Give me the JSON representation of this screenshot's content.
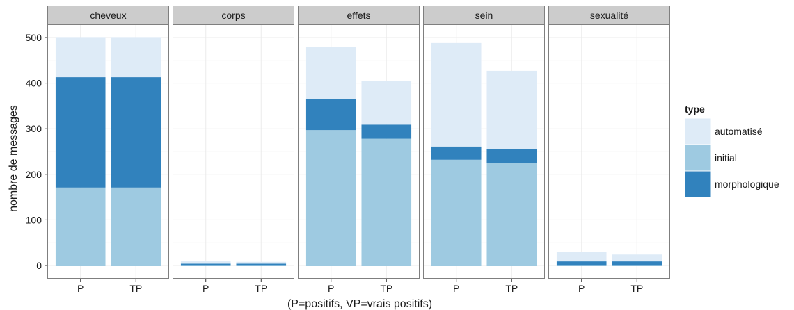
{
  "chart_data": {
    "type": "bar",
    "stacked": true,
    "facets": [
      "cheveux",
      "corps",
      "effets",
      "sein",
      "sexualité"
    ],
    "categories": [
      "P",
      "TP"
    ],
    "xlabel": "(P=positifs, VP=vrais positifs)",
    "ylabel": "nombre de messages",
    "ylim": [
      0,
      520
    ],
    "yticks": [
      0,
      100,
      200,
      300,
      400,
      500
    ],
    "grid": true,
    "legend": {
      "title": "type",
      "placement": "right",
      "entries": [
        "automatisé",
        "initial",
        "morphologique"
      ]
    },
    "colors": {
      "automatisé": "#deebf7",
      "initial": "#9ecae1",
      "morphologique": "#3182bd"
    },
    "stack_order": [
      "initial",
      "morphologique",
      "automatisé"
    ],
    "panels": [
      {
        "facet": "cheveux",
        "series": [
          {
            "name": "initial",
            "values": [
              171,
              171
            ]
          },
          {
            "name": "morphologique",
            "values": [
              242,
              242
            ]
          },
          {
            "name": "automatisé",
            "values": [
              88,
              88
            ]
          }
        ]
      },
      {
        "facet": "corps",
        "series": [
          {
            "name": "initial",
            "values": [
              1,
              1
            ]
          },
          {
            "name": "morphologique",
            "values": [
              3,
              3
            ]
          },
          {
            "name": "automatisé",
            "values": [
              5,
              4
            ]
          }
        ]
      },
      {
        "facet": "effets",
        "series": [
          {
            "name": "initial",
            "values": [
              297,
              278
            ]
          },
          {
            "name": "morphologique",
            "values": [
              68,
              31
            ]
          },
          {
            "name": "automatisé",
            "values": [
              114,
              95
            ]
          }
        ]
      },
      {
        "facet": "sein",
        "series": [
          {
            "name": "initial",
            "values": [
              232,
              225
            ]
          },
          {
            "name": "morphologique",
            "values": [
              29,
              30
            ]
          },
          {
            "name": "automatisé",
            "values": [
              227,
              172
            ]
          }
        ]
      },
      {
        "facet": "sexualité",
        "series": [
          {
            "name": "initial",
            "values": [
              1,
              1
            ]
          },
          {
            "name": "morphologique",
            "values": [
              8,
              8
            ]
          },
          {
            "name": "automatisé",
            "values": [
              21,
              15
            ]
          }
        ]
      }
    ]
  }
}
